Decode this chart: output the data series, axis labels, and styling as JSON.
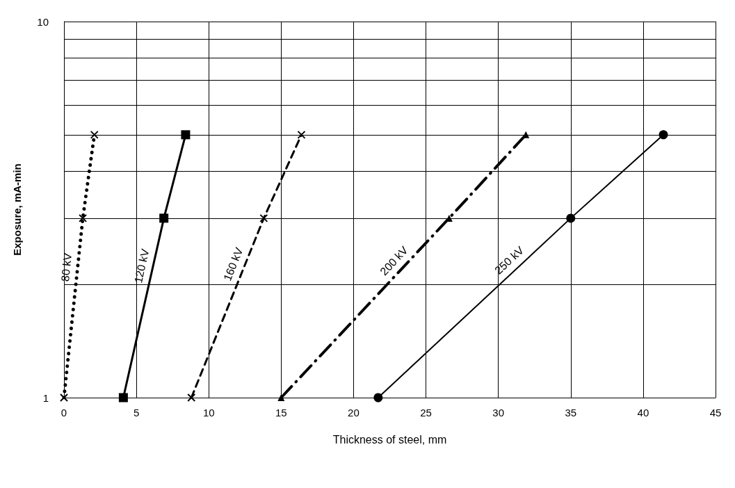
{
  "chart_data": {
    "type": "line",
    "xlabel": "Thickness of steel, mm",
    "ylabel": "Exposure, mA-min",
    "xlim": [
      0,
      45
    ],
    "xticks": [
      0,
      5,
      10,
      15,
      20,
      25,
      30,
      35,
      40,
      45
    ],
    "ylim": [
      1,
      10
    ],
    "yticks": [
      1,
      {
        "value": 2,
        "label": null
      },
      {
        "value": 3,
        "label": null
      },
      {
        "value": 4,
        "label": null
      },
      {
        "value": 5,
        "label": null
      },
      {
        "value": 6,
        "label": null
      },
      {
        "value": 7,
        "label": null
      },
      {
        "value": 8,
        "label": null
      },
      {
        "value": 9,
        "label": null
      },
      10
    ],
    "log": "y",
    "grid": true,
    "legend": false,
    "series": [
      {
        "name": "80 kV",
        "color": "#000000",
        "x": [
          0,
          1.3,
          2.1
        ],
        "values": [
          1,
          3,
          5
        ],
        "marker": "cross",
        "line_style": "dotted"
      },
      {
        "name": "120 kV",
        "color": "#000000",
        "x": [
          4.1,
          6.9,
          8.4
        ],
        "values": [
          1,
          3,
          5
        ],
        "marker": "square",
        "line_style": "solid"
      },
      {
        "name": "160 kV",
        "color": "#000000",
        "x": [
          8.8,
          13.8,
          16.4
        ],
        "values": [
          1,
          3,
          5
        ],
        "marker": "cross",
        "line_style": "dashed"
      },
      {
        "name": "200 kV",
        "color": "#000000",
        "x": [
          15.0,
          26.6,
          31.9
        ],
        "values": [
          1,
          3,
          5
        ],
        "marker": "triangle",
        "line_style": "dashdot"
      },
      {
        "name": "250 kV",
        "color": "#000000",
        "x": [
          21.7,
          35.0,
          41.4
        ],
        "values": [
          1,
          3,
          5
        ],
        "marker": "circle",
        "line_style": "solid"
      }
    ]
  }
}
